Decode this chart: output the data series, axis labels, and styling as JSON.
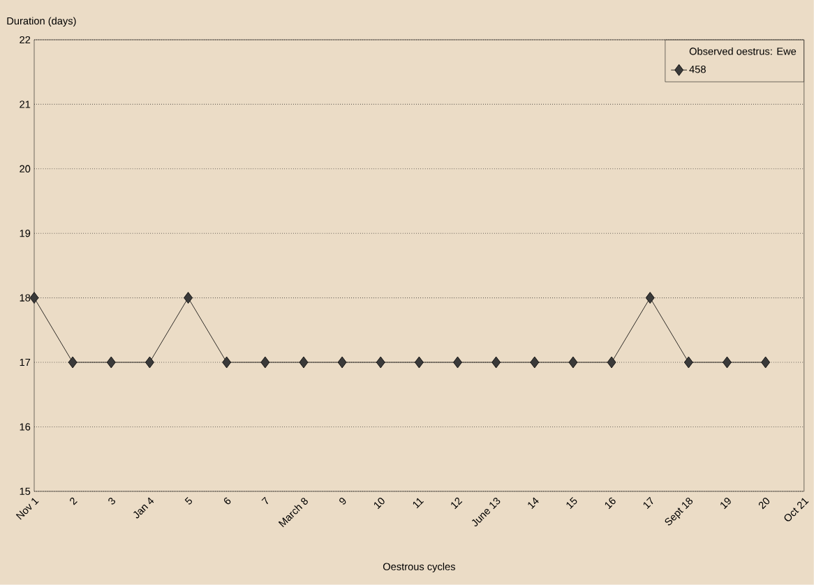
{
  "chart_data": {
    "type": "line",
    "xlabel": "Oestrous cycles",
    "ylabel": "Duration (days)",
    "legend_title": "Observed oestrus: Ewe",
    "categories": [
      "Nov 1",
      "2",
      "3",
      "Jan 4",
      "5",
      "6",
      "7",
      "March 8",
      "9",
      "10",
      "11",
      "12",
      "June 13",
      "14",
      "15",
      "16",
      "17",
      "Sept 18",
      "19",
      "20",
      "Oct 21"
    ],
    "series": [
      {
        "name": "458",
        "color": "#3a3a3a",
        "values": [
          18,
          17,
          17,
          17,
          18,
          17,
          17,
          17,
          17,
          17,
          17,
          17,
          17,
          17,
          17,
          17,
          18,
          17,
          17,
          17,
          null
        ]
      }
    ],
    "ylim": [
      15,
      22
    ],
    "yticks": [
      15,
      16,
      17,
      18,
      19,
      20,
      21,
      22
    ],
    "grid": "y",
    "legend": "top right",
    "marker": "diamond",
    "line_style": "solid"
  }
}
